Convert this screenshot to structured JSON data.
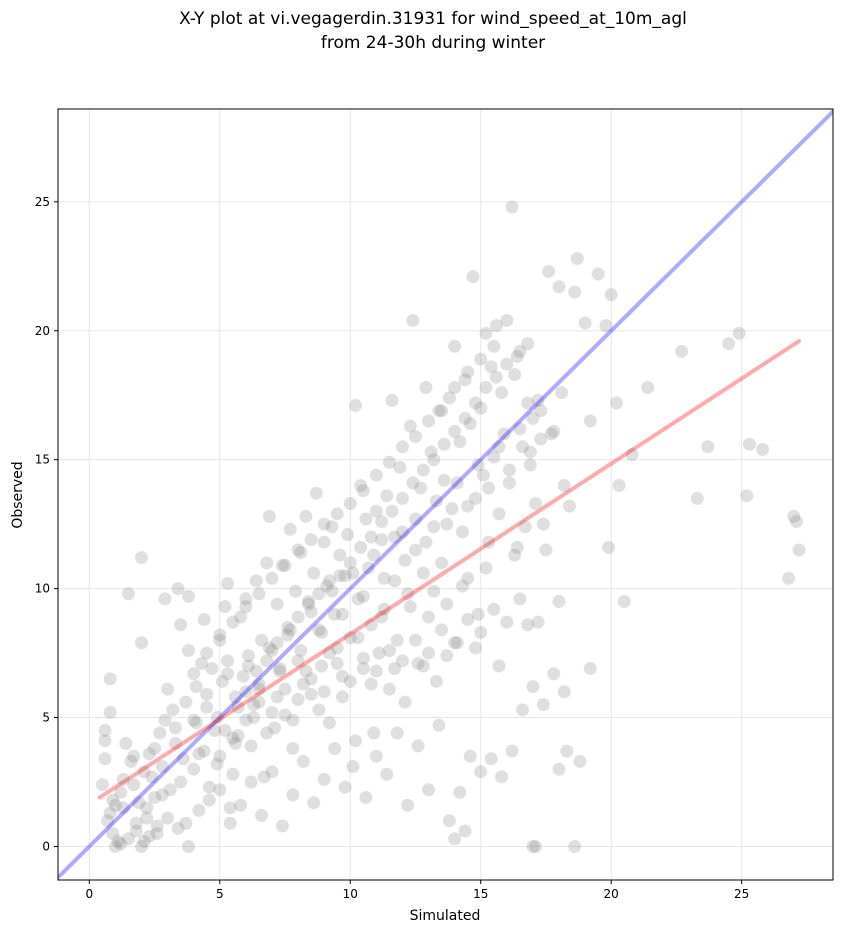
{
  "chart_data": {
    "type": "scatter",
    "title_line1": "X-Y plot at vi.vegagerdin.31931 for wind_speed_at_10m_agl",
    "title_line2": "from 24-30h during winter",
    "xlabel": "Simulated",
    "ylabel": "Observed",
    "xlim": [
      -1.2,
      28.5
    ],
    "ylim": [
      -1.3,
      28.6
    ],
    "xticks": [
      0,
      5,
      10,
      15,
      20,
      25
    ],
    "yticks": [
      0,
      5,
      10,
      15,
      20,
      25
    ],
    "grid": true,
    "identity_line": {
      "color": "#0000ff",
      "opacity": 0.33
    },
    "fit_line": {
      "color": "#ff0000",
      "opacity": 0.33,
      "x": [
        0.4,
        27.2
      ],
      "y": [
        1.9,
        19.6
      ]
    },
    "point_color": "#808080",
    "points": [
      [
        0.5,
        2.4
      ],
      [
        0.6,
        3.4
      ],
      [
        0.6,
        4.5
      ],
      [
        0.6,
        4.1
      ],
      [
        0.8,
        5.2
      ],
      [
        0.8,
        6.5
      ],
      [
        0.7,
        1.0
      ],
      [
        0.8,
        1.3
      ],
      [
        0.9,
        0.5
      ],
      [
        1.0,
        1.6
      ],
      [
        1.1,
        0.2
      ],
      [
        1.2,
        2.1
      ],
      [
        1.3,
        1.5
      ],
      [
        1.4,
        4.0
      ],
      [
        1.5,
        9.8
      ],
      [
        1.6,
        3.3
      ],
      [
        1.7,
        2.4
      ],
      [
        1.8,
        0.9
      ],
      [
        1.9,
        1.7
      ],
      [
        2.0,
        11.2
      ],
      [
        2.0,
        7.9
      ],
      [
        2.1,
        0.2
      ],
      [
        2.2,
        1.1
      ],
      [
        2.3,
        3.6
      ],
      [
        2.4,
        2.7
      ],
      [
        2.5,
        1.9
      ],
      [
        2.6,
        0.5
      ],
      [
        2.7,
        4.4
      ],
      [
        2.8,
        3.1
      ],
      [
        2.9,
        9.6
      ],
      [
        3.0,
        6.1
      ],
      [
        3.1,
        2.2
      ],
      [
        3.2,
        5.3
      ],
      [
        3.3,
        4.6
      ],
      [
        3.4,
        10.0
      ],
      [
        3.5,
        8.6
      ],
      [
        3.6,
        3.4
      ],
      [
        3.7,
        0.9
      ],
      [
        3.8,
        9.7
      ],
      [
        3.8,
        7.6
      ],
      [
        4.0,
        4.9
      ],
      [
        4.1,
        6.2
      ],
      [
        4.2,
        3.6
      ],
      [
        4.3,
        7.1
      ],
      [
        4.4,
        8.8
      ],
      [
        4.5,
        5.4
      ],
      [
        4.6,
        2.3
      ],
      [
        4.7,
        6.9
      ],
      [
        4.8,
        4.5
      ],
      [
        4.9,
        3.2
      ],
      [
        5.0,
        8.2
      ],
      [
        5.1,
        6.4
      ],
      [
        5.2,
        9.3
      ],
      [
        5.3,
        10.2
      ],
      [
        5.3,
        7.2
      ],
      [
        5.4,
        1.5
      ],
      [
        5.5,
        2.8
      ],
      [
        5.6,
        5.8
      ],
      [
        5.7,
        4.3
      ],
      [
        5.8,
        8.9
      ],
      [
        5.9,
        6.6
      ],
      [
        6.0,
        9.6
      ],
      [
        6.1,
        7.4
      ],
      [
        6.2,
        3.9
      ],
      [
        6.3,
        5.5
      ],
      [
        6.4,
        10.3
      ],
      [
        6.5,
        6.1
      ],
      [
        6.6,
        8.0
      ],
      [
        6.7,
        2.7
      ],
      [
        6.8,
        11.0
      ],
      [
        6.9,
        12.8
      ],
      [
        7.0,
        7.6
      ],
      [
        7.1,
        4.6
      ],
      [
        7.2,
        9.4
      ],
      [
        7.3,
        6.8
      ],
      [
        7.4,
        10.9
      ],
      [
        7.5,
        5.1
      ],
      [
        7.6,
        8.5
      ],
      [
        7.7,
        12.3
      ],
      [
        7.8,
        3.8
      ],
      [
        7.9,
        9.9
      ],
      [
        8.0,
        7.2
      ],
      [
        8.1,
        11.4
      ],
      [
        8.2,
        6.3
      ],
      [
        8.3,
        12.8
      ],
      [
        8.4,
        9.5
      ],
      [
        8.5,
        5.9
      ],
      [
        8.6,
        10.6
      ],
      [
        8.7,
        13.7
      ],
      [
        8.8,
        8.4
      ],
      [
        8.9,
        7.0
      ],
      [
        9.0,
        11.8
      ],
      [
        9.1,
        10.1
      ],
      [
        9.2,
        4.8
      ],
      [
        9.3,
        12.4
      ],
      [
        9.4,
        9.0
      ],
      [
        9.5,
        7.7
      ],
      [
        9.6,
        11.3
      ],
      [
        9.7,
        6.6
      ],
      [
        9.8,
        10.5
      ],
      [
        9.9,
        12.1
      ],
      [
        10.0,
        8.1
      ],
      [
        10.1,
        3.1
      ],
      [
        10.2,
        17.1
      ],
      [
        10.3,
        9.6
      ],
      [
        10.4,
        14.0
      ],
      [
        10.5,
        6.9
      ],
      [
        10.6,
        12.7
      ],
      [
        10.7,
        10.8
      ],
      [
        10.8,
        8.6
      ],
      [
        10.9,
        4.4
      ],
      [
        11.0,
        13.0
      ],
      [
        11.1,
        7.5
      ],
      [
        11.2,
        11.9
      ],
      [
        11.3,
        9.2
      ],
      [
        11.4,
        13.6
      ],
      [
        11.5,
        6.1
      ],
      [
        11.6,
        17.3
      ],
      [
        11.7,
        10.3
      ],
      [
        11.8,
        8.0
      ],
      [
        11.9,
        14.7
      ],
      [
        12.0,
        12.2
      ],
      [
        12.1,
        5.6
      ],
      [
        12.2,
        9.8
      ],
      [
        12.3,
        16.3
      ],
      [
        12.4,
        20.4
      ],
      [
        12.5,
        11.5
      ],
      [
        12.6,
        7.1
      ],
      [
        12.7,
        13.9
      ],
      [
        12.8,
        10.6
      ],
      [
        12.9,
        17.8
      ],
      [
        13.0,
        8.9
      ],
      [
        13.1,
        15.3
      ],
      [
        13.2,
        12.4
      ],
      [
        13.3,
        6.4
      ],
      [
        13.4,
        16.9
      ],
      [
        13.5,
        11.0
      ],
      [
        13.6,
        14.2
      ],
      [
        13.7,
        9.4
      ],
      [
        13.8,
        17.4
      ],
      [
        13.9,
        13.1
      ],
      [
        14.0,
        19.4
      ],
      [
        14.1,
        7.9
      ],
      [
        14.2,
        15.7
      ],
      [
        14.3,
        12.2
      ],
      [
        14.4,
        18.1
      ],
      [
        14.5,
        10.4
      ],
      [
        14.6,
        16.4
      ],
      [
        14.7,
        22.1
      ],
      [
        14.8,
        13.5
      ],
      [
        14.9,
        9.0
      ],
      [
        15.0,
        17.0
      ],
      [
        15.1,
        14.4
      ],
      [
        15.2,
        19.9
      ],
      [
        15.3,
        11.8
      ],
      [
        15.4,
        18.6
      ],
      [
        15.5,
        15.1
      ],
      [
        15.6,
        20.2
      ],
      [
        15.7,
        12.9
      ],
      [
        15.8,
        17.6
      ],
      [
        15.9,
        16.0
      ],
      [
        16.0,
        20.4
      ],
      [
        16.1,
        14.1
      ],
      [
        16.2,
        24.8
      ],
      [
        16.3,
        18.3
      ],
      [
        16.4,
        11.6
      ],
      [
        16.5,
        19.2
      ],
      [
        16.6,
        15.5
      ],
      [
        16.7,
        12.4
      ],
      [
        16.8,
        17.2
      ],
      [
        16.9,
        14.8
      ],
      [
        17.0,
        16.6
      ],
      [
        17.1,
        13.3
      ],
      [
        17.2,
        17.3
      ],
      [
        17.3,
        15.8
      ],
      [
        17.4,
        12.5
      ],
      [
        17.5,
        11.5
      ],
      [
        17.6,
        22.3
      ],
      [
        17.8,
        16.1
      ],
      [
        18.0,
        21.7
      ],
      [
        18.2,
        14.0
      ],
      [
        18.4,
        13.2
      ],
      [
        18.6,
        21.5
      ],
      [
        18.7,
        22.8
      ],
      [
        19.0,
        20.3
      ],
      [
        19.2,
        16.5
      ],
      [
        19.5,
        22.2
      ],
      [
        19.8,
        20.2
      ],
      [
        20.0,
        21.4
      ],
      [
        20.2,
        17.2
      ],
      [
        20.3,
        14.0
      ],
      [
        20.5,
        9.5
      ],
      [
        20.8,
        15.2
      ],
      [
        21.4,
        17.8
      ],
      [
        22.7,
        19.2
      ],
      [
        23.3,
        13.5
      ],
      [
        23.7,
        15.5
      ],
      [
        24.5,
        19.5
      ],
      [
        24.9,
        19.9
      ],
      [
        25.2,
        13.6
      ],
      [
        25.3,
        15.6
      ],
      [
        25.8,
        15.4
      ],
      [
        26.8,
        10.4
      ],
      [
        27.0,
        12.8
      ],
      [
        27.1,
        12.6
      ],
      [
        27.2,
        11.5
      ],
      [
        1.0,
        0.0
      ],
      [
        1.2,
        0.1
      ],
      [
        1.5,
        0.3
      ],
      [
        1.8,
        0.6
      ],
      [
        2.0,
        0.0
      ],
      [
        2.3,
        0.4
      ],
      [
        2.6,
        0.8
      ],
      [
        3.0,
        1.1
      ],
      [
        3.4,
        0.7
      ],
      [
        3.8,
        0.0
      ],
      [
        4.2,
        1.4
      ],
      [
        4.6,
        1.8
      ],
      [
        5.0,
        2.2
      ],
      [
        5.4,
        0.9
      ],
      [
        5.8,
        1.6
      ],
      [
        6.2,
        2.5
      ],
      [
        6.6,
        1.2
      ],
      [
        7.0,
        2.9
      ],
      [
        7.4,
        0.8
      ],
      [
        7.8,
        2.0
      ],
      [
        8.2,
        3.3
      ],
      [
        8.6,
        1.7
      ],
      [
        9.0,
        2.6
      ],
      [
        9.4,
        3.8
      ],
      [
        9.8,
        2.3
      ],
      [
        10.2,
        4.1
      ],
      [
        10.6,
        1.9
      ],
      [
        11.0,
        3.5
      ],
      [
        11.4,
        2.8
      ],
      [
        11.8,
        4.4
      ],
      [
        12.2,
        1.6
      ],
      [
        12.6,
        3.9
      ],
      [
        13.0,
        2.2
      ],
      [
        13.4,
        4.7
      ],
      [
        13.8,
        1.0
      ],
      [
        14.0,
        0.3
      ],
      [
        14.2,
        2.1
      ],
      [
        14.4,
        0.6
      ],
      [
        14.6,
        3.5
      ],
      [
        15.0,
        2.9
      ],
      [
        15.4,
        3.4
      ],
      [
        15.8,
        2.7
      ],
      [
        16.2,
        3.7
      ],
      [
        16.6,
        5.3
      ],
      [
        17.0,
        6.2
      ],
      [
        17.4,
        5.5
      ],
      [
        17.8,
        6.7
      ],
      [
        18.2,
        6.0
      ],
      [
        17.0,
        0.0
      ],
      [
        17.1,
        0.0
      ],
      [
        18.6,
        0.0
      ],
      [
        18.0,
        3.0
      ],
      [
        18.3,
        3.7
      ],
      [
        18.8,
        3.3
      ],
      [
        19.2,
        6.9
      ],
      [
        18.0,
        9.5
      ],
      [
        19.9,
        11.6
      ],
      [
        0.9,
        1.8
      ],
      [
        1.3,
        2.6
      ],
      [
        1.7,
        3.5
      ],
      [
        2.1,
        2.9
      ],
      [
        2.5,
        3.8
      ],
      [
        2.9,
        4.9
      ],
      [
        3.3,
        4.0
      ],
      [
        3.7,
        5.6
      ],
      [
        4.1,
        4.8
      ],
      [
        4.5,
        5.9
      ],
      [
        4.9,
        5.0
      ],
      [
        5.3,
        6.7
      ],
      [
        5.7,
        5.4
      ],
      [
        6.1,
        7.0
      ],
      [
        6.5,
        6.3
      ],
      [
        6.9,
        7.7
      ],
      [
        7.3,
        6.9
      ],
      [
        7.7,
        8.4
      ],
      [
        8.1,
        7.6
      ],
      [
        8.5,
        9.1
      ],
      [
        8.9,
        8.3
      ],
      [
        9.3,
        9.9
      ],
      [
        9.7,
        9.0
      ],
      [
        10.1,
        10.6
      ],
      [
        10.5,
        9.7
      ],
      [
        10.9,
        11.3
      ],
      [
        11.3,
        10.4
      ],
      [
        11.7,
        12.0
      ],
      [
        12.1,
        11.1
      ],
      [
        12.5,
        12.7
      ],
      [
        12.9,
        11.8
      ],
      [
        13.3,
        13.4
      ],
      [
        13.7,
        12.5
      ],
      [
        14.1,
        14.1
      ],
      [
        14.5,
        13.2
      ],
      [
        14.9,
        14.8
      ],
      [
        15.3,
        13.9
      ],
      [
        15.7,
        15.5
      ],
      [
        16.1,
        14.6
      ],
      [
        16.5,
        16.2
      ],
      [
        16.9,
        15.3
      ],
      [
        17.3,
        16.9
      ],
      [
        17.7,
        16.0
      ],
      [
        18.1,
        17.6
      ],
      [
        5.0,
        3.5
      ],
      [
        5.5,
        4.2
      ],
      [
        6.0,
        4.9
      ],
      [
        6.5,
        5.6
      ],
      [
        7.0,
        5.2
      ],
      [
        7.5,
        6.1
      ],
      [
        8.0,
        5.7
      ],
      [
        8.5,
        6.5
      ],
      [
        9.0,
        6.0
      ],
      [
        9.5,
        7.1
      ],
      [
        10.0,
        6.4
      ],
      [
        10.5,
        7.3
      ],
      [
        11.0,
        6.8
      ],
      [
        11.5,
        7.6
      ],
      [
        12.0,
        7.2
      ],
      [
        12.5,
        8.0
      ],
      [
        13.0,
        7.5
      ],
      [
        13.5,
        8.4
      ],
      [
        14.0,
        7.9
      ],
      [
        14.5,
        8.8
      ],
      [
        15.0,
        8.3
      ],
      [
        15.5,
        9.2
      ],
      [
        16.0,
        8.7
      ],
      [
        16.5,
        9.6
      ],
      [
        4.0,
        6.7
      ],
      [
        4.5,
        7.5
      ],
      [
        5.0,
        8.0
      ],
      [
        5.5,
        8.7
      ],
      [
        6.0,
        9.3
      ],
      [
        6.5,
        9.8
      ],
      [
        7.0,
        10.4
      ],
      [
        7.5,
        10.9
      ],
      [
        8.0,
        11.5
      ],
      [
        8.5,
        11.9
      ],
      [
        9.0,
        12.5
      ],
      [
        9.5,
        12.9
      ],
      [
        10.0,
        13.3
      ],
      [
        10.5,
        13.8
      ],
      [
        11.0,
        14.4
      ],
      [
        11.5,
        14.9
      ],
      [
        12.0,
        15.5
      ],
      [
        12.5,
        15.9
      ],
      [
        13.0,
        16.5
      ],
      [
        13.5,
        16.9
      ],
      [
        14.0,
        17.8
      ],
      [
        14.5,
        18.4
      ],
      [
        15.0,
        18.9
      ],
      [
        15.5,
        19.4
      ],
      [
        2.2,
        1.5
      ],
      [
        2.8,
        2.0
      ],
      [
        3.5,
        2.5
      ],
      [
        4.0,
        3.0
      ],
      [
        4.4,
        3.7
      ],
      [
        5.2,
        4.5
      ],
      [
        5.6,
        4.0
      ],
      [
        6.3,
        5.0
      ],
      [
        6.8,
        4.4
      ],
      [
        7.2,
        5.8
      ],
      [
        7.8,
        4.9
      ],
      [
        8.3,
        6.8
      ],
      [
        8.8,
        5.3
      ],
      [
        9.2,
        7.5
      ],
      [
        9.7,
        5.8
      ],
      [
        10.3,
        8.1
      ],
      [
        10.8,
        6.3
      ],
      [
        11.2,
        8.9
      ],
      [
        11.7,
        6.9
      ],
      [
        12.3,
        9.3
      ],
      [
        12.8,
        7.0
      ],
      [
        13.2,
        9.9
      ],
      [
        13.7,
        7.4
      ],
      [
        14.3,
        10.1
      ],
      [
        14.8,
        7.7
      ],
      [
        15.2,
        10.8
      ],
      [
        15.7,
        7.0
      ],
      [
        16.3,
        11.3
      ],
      [
        16.8,
        8.6
      ],
      [
        17.2,
        8.7
      ],
      [
        6.0,
        6.0
      ],
      [
        6.4,
        6.8
      ],
      [
        6.8,
        7.2
      ],
      [
        7.2,
        7.9
      ],
      [
        7.6,
        8.2
      ],
      [
        8.0,
        8.9
      ],
      [
        8.4,
        9.4
      ],
      [
        8.8,
        9.8
      ],
      [
        9.2,
        10.3
      ],
      [
        9.6,
        10.5
      ],
      [
        10.0,
        11.0
      ],
      [
        10.4,
        11.6
      ],
      [
        10.8,
        12.0
      ],
      [
        11.2,
        12.6
      ],
      [
        11.6,
        13.0
      ],
      [
        12.0,
        13.5
      ],
      [
        12.4,
        14.1
      ],
      [
        12.8,
        14.6
      ],
      [
        13.2,
        15.0
      ],
      [
        13.6,
        15.6
      ],
      [
        14.0,
        16.1
      ],
      [
        14.4,
        16.6
      ],
      [
        14.8,
        17.2
      ],
      [
        15.2,
        17.8
      ],
      [
        15.6,
        18.2
      ],
      [
        16.0,
        18.7
      ],
      [
        16.4,
        19.0
      ],
      [
        16.8,
        19.5
      ]
    ]
  }
}
